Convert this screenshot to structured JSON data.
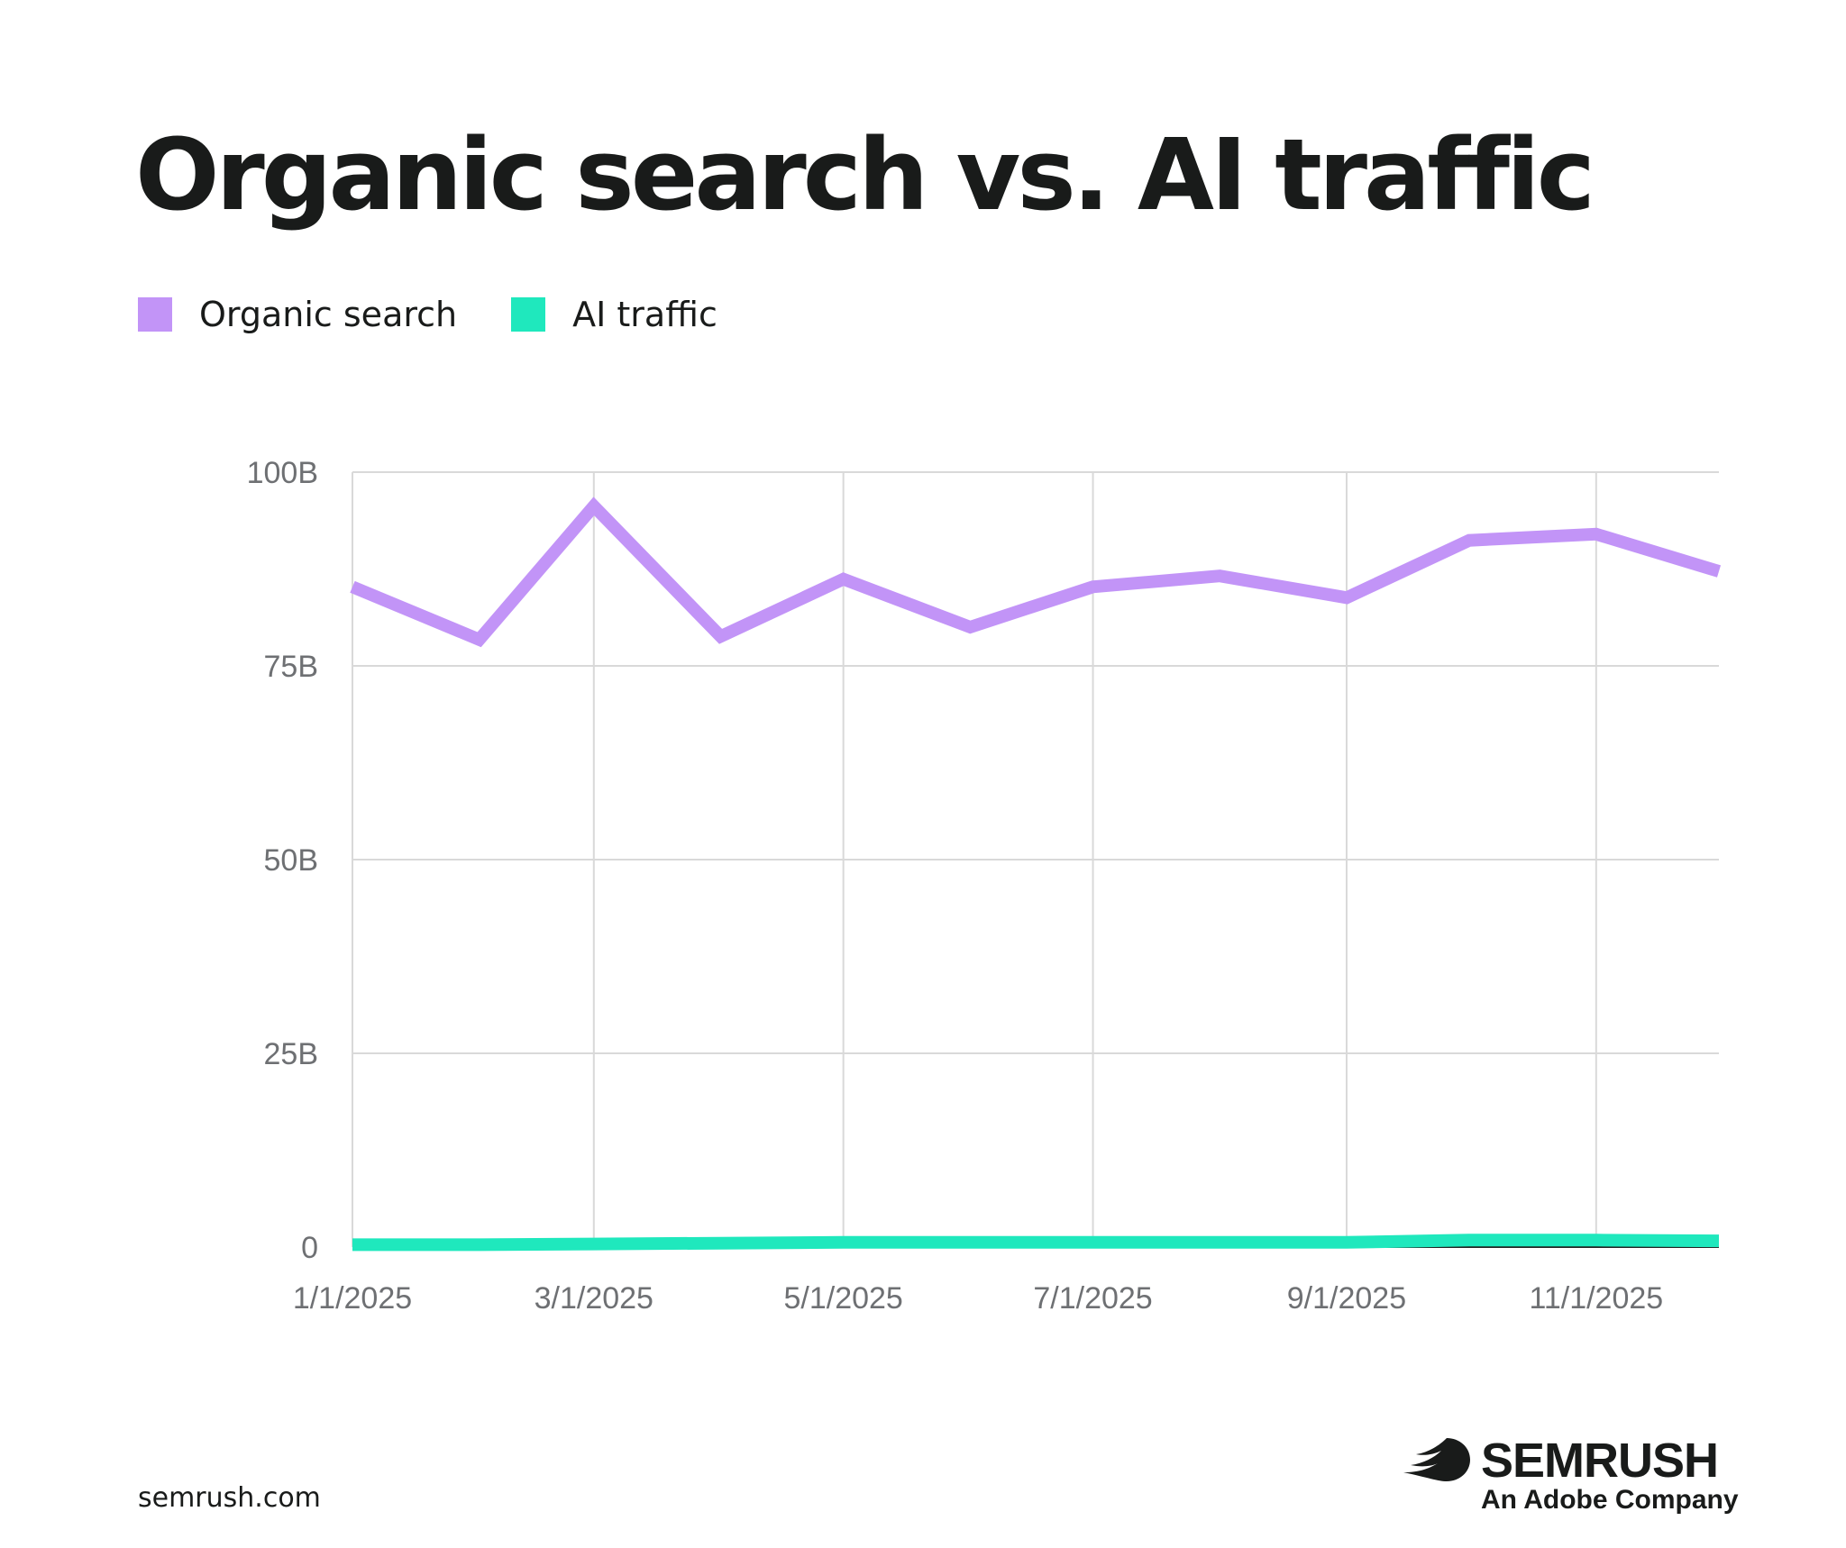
{
  "chart_data": {
    "type": "line",
    "title": "Organic search vs. AI traffic",
    "x": [
      "2025-01-01",
      "2025-02-01",
      "2025-03-01",
      "2025-04-01",
      "2025-05-01",
      "2025-06-01",
      "2025-07-01",
      "2025-08-01",
      "2025-09-01",
      "2025-10-01",
      "2025-11-01",
      "2025-12-01"
    ],
    "x_tick_labels": [
      "1/1/2025",
      "3/1/2025",
      "5/1/2025",
      "7/1/2025",
      "9/1/2025",
      "11/1/2025"
    ],
    "y_tick_labels": [
      "0",
      "25B",
      "50B",
      "75B",
      "100B"
    ],
    "ylim": [
      0,
      100
    ],
    "y_unit": "B",
    "grid": true,
    "legend_position": "top-left",
    "series": [
      {
        "name": "Organic search",
        "color": "#c294f7",
        "values": [
          85.2,
          78.4,
          95.6,
          78.8,
          86.2,
          80.0,
          85.2,
          86.6,
          83.8,
          91.2,
          92.0,
          87.2
        ]
      },
      {
        "name": "AI traffic",
        "color": "#1fe8bd",
        "values": [
          0.3,
          0.3,
          0.4,
          0.5,
          0.6,
          0.6,
          0.6,
          0.6,
          0.6,
          0.9,
          0.9,
          0.8
        ]
      }
    ],
    "xlabel": "",
    "ylabel": ""
  },
  "legend": {
    "organic_label": "Organic search",
    "ai_label": "AI traffic"
  },
  "footer": {
    "url": "semrush.com",
    "brand": "SEMRUSH",
    "tagline": "An Adobe Company"
  },
  "colors": {
    "organic": "#c294f7",
    "ai": "#1fe8bd",
    "grid": "#d9d9d9",
    "text": "#191b1a"
  }
}
